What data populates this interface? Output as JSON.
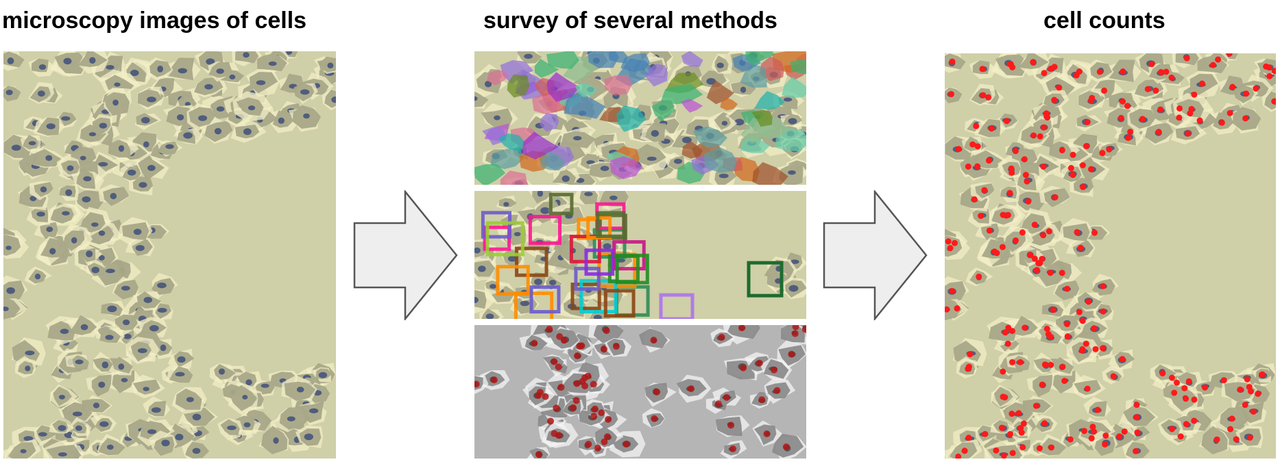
{
  "titles": {
    "left": "microscopy images of cells",
    "middle": "survey of several methods",
    "right": "cell counts"
  },
  "colors": {
    "background": "#ffffff",
    "cell_image_base": "#cfcfa8",
    "cell_body": "#a8a888",
    "cell_nucleus": "#3f4f7a",
    "halo": "#f2eec6",
    "count_dot": "#ff1a1a",
    "arrow_fill": "#eeeeee",
    "arrow_stroke": "#555555",
    "grayscale_base": "#b5b5b5"
  },
  "panels": {
    "input": "microscopy-image",
    "methods": [
      "segmentation-masks",
      "bounding-box-detection",
      "dot-annotation-grayscale"
    ],
    "output": "cell-count-dots"
  }
}
